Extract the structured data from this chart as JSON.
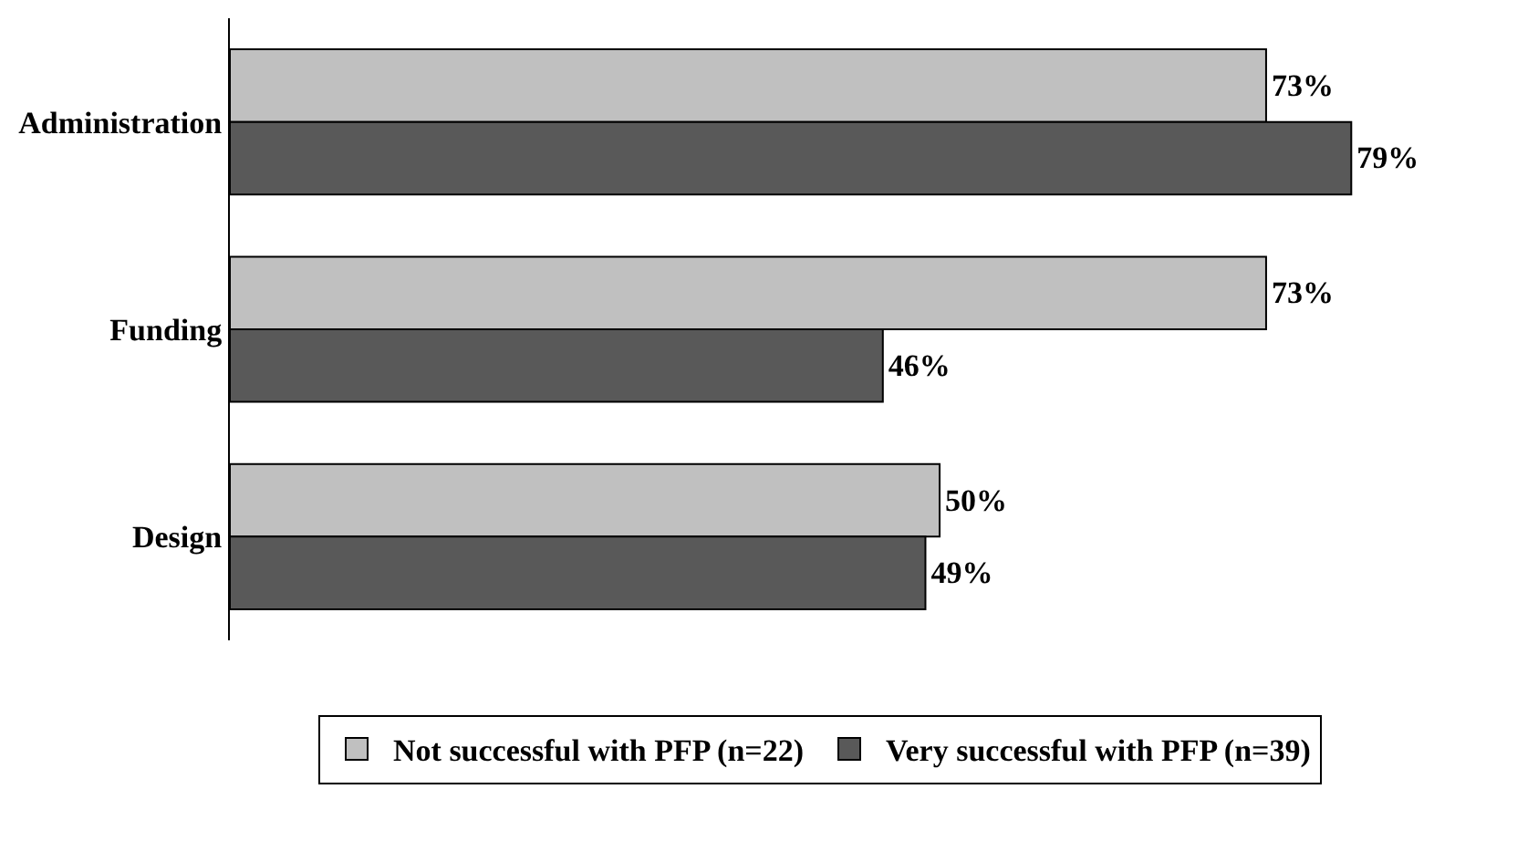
{
  "chart_data": {
    "type": "bar",
    "orientation": "horizontal",
    "categories": [
      "Administration",
      "Funding",
      "Design"
    ],
    "series": [
      {
        "name": "Not successful with PFP (n=22)",
        "color": "#c0c0c0",
        "values": [
          73,
          73,
          50
        ],
        "value_labels": [
          "73%",
          "73%",
          "50%"
        ]
      },
      {
        "name": "Very successful with PFP (n=39)",
        "color": "#595959",
        "values": [
          79,
          46,
          49
        ],
        "value_labels": [
          "79%",
          "46%",
          "49%"
        ]
      }
    ],
    "grid": false,
    "legend": "bottom",
    "tick_labels": "y"
  }
}
